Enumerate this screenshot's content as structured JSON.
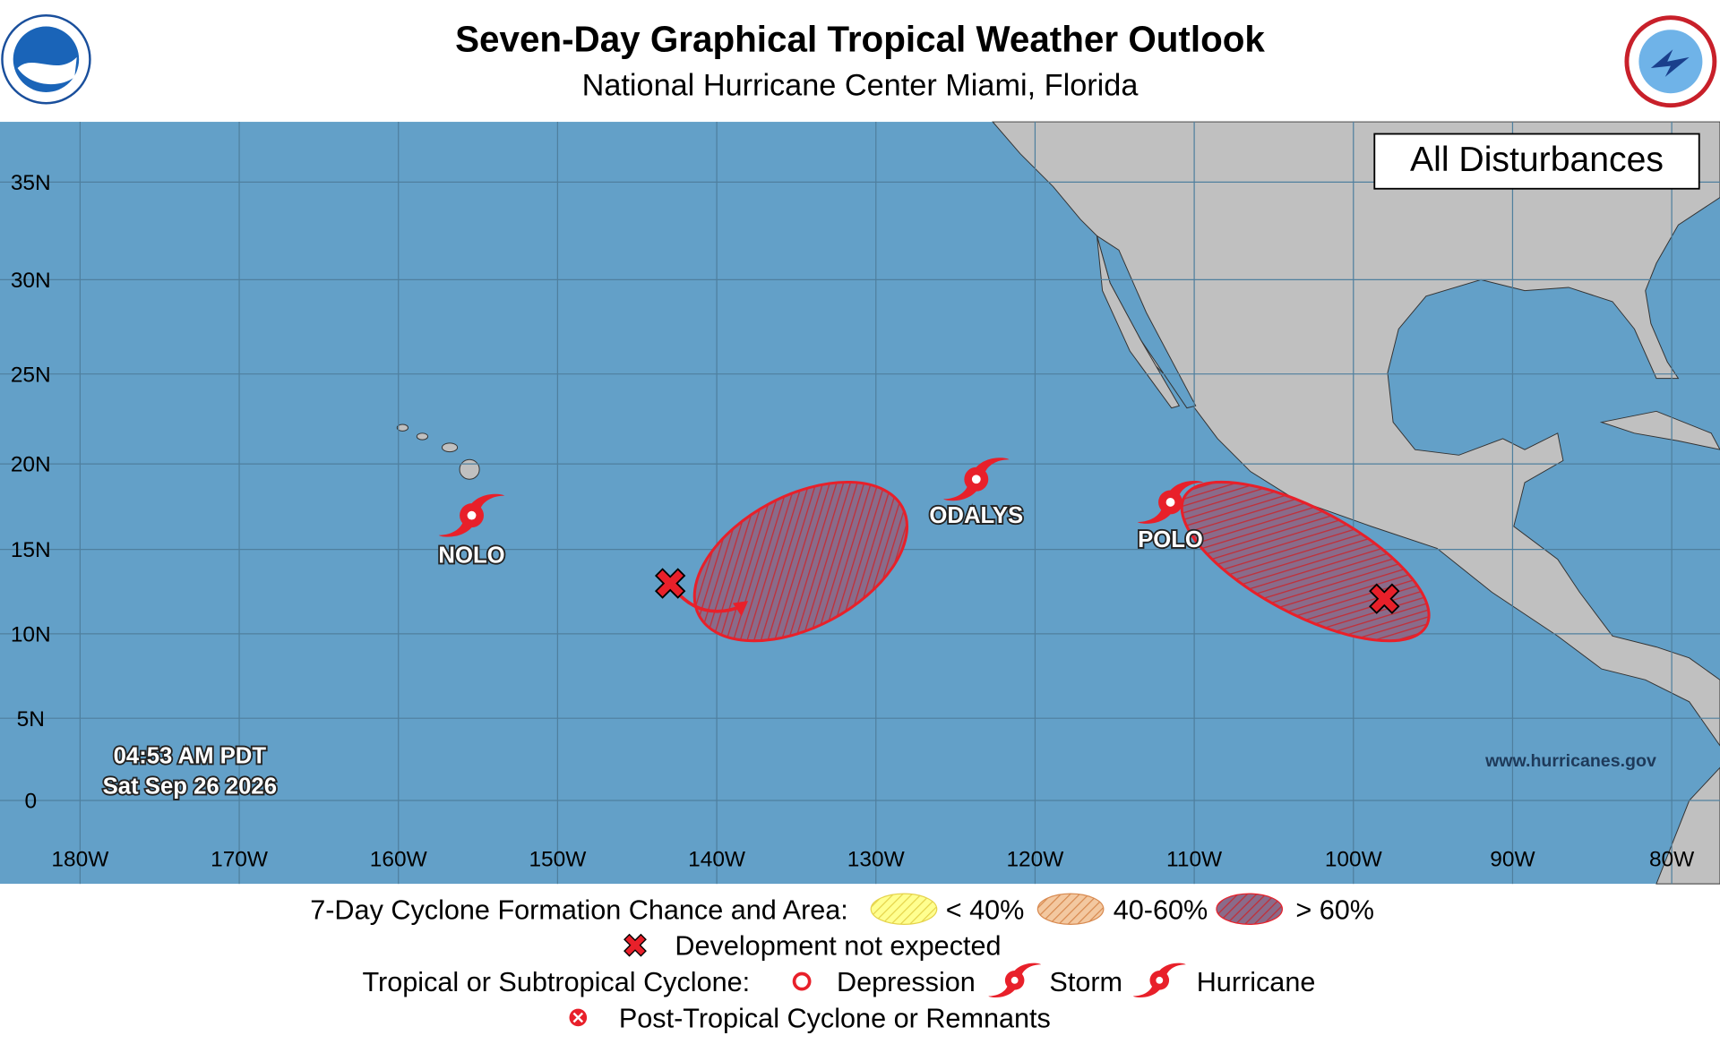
{
  "header": {
    "title": "Seven-Day Graphical Tropical Weather Outlook",
    "subtitle": "National Hurricane Center  Miami, Florida"
  },
  "map": {
    "panel_label": "All Disturbances",
    "lat_labels": [
      "35N",
      "30N",
      "25N",
      "20N",
      "15N",
      "10N",
      "5N",
      "0"
    ],
    "lon_labels": [
      "180W",
      "170W",
      "160W",
      "150W",
      "140W",
      "130W",
      "120W",
      "110W",
      "100W",
      "90W",
      "80W"
    ],
    "storms": [
      {
        "name": "NOLO"
      },
      {
        "name": "ODALYS"
      },
      {
        "name": "POLO"
      }
    ],
    "timestamp": [
      "04:53 AM PDT",
      "Sat Sep 26 2026"
    ],
    "website": "www.hurricanes.gov"
  },
  "legend": {
    "formation_label": "7-Day Cyclone Formation Chance and Area:",
    "low": "< 40%",
    "medium": "40-60%",
    "high": "> 60%",
    "not_expected": "Development not expected",
    "cyclone_label": "Tropical or Subtropical Cyclone:",
    "depression": "Depression",
    "storm": "Storm",
    "hurricane": "Hurricane",
    "post_tropical": "Post-Tropical Cyclone or Remnants"
  }
}
